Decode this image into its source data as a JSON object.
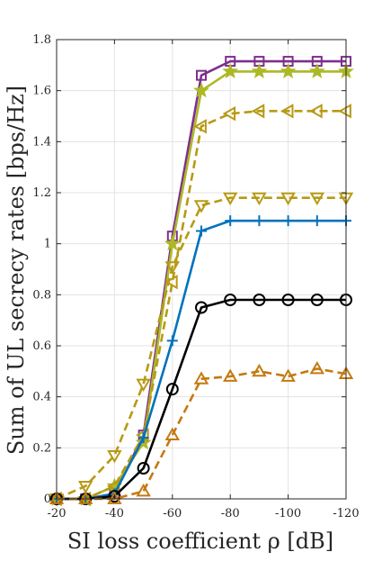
{
  "chart_data": {
    "type": "line",
    "xlabel": "SI loss coefficient ρ [dB]",
    "ylabel": "Sum of UL secrecy rates [bps/Hz]",
    "x": [
      -20,
      -30,
      -40,
      -50,
      -60,
      -70,
      -80,
      -90,
      -100,
      -110,
      -120
    ],
    "x_ticks": [
      -20,
      -40,
      -60,
      -80,
      -100,
      -120
    ],
    "x_tick_labels": [
      "-20",
      "-40",
      "-60",
      "-80",
      "-100",
      "-120"
    ],
    "x_reversed": true,
    "xlim": [
      -20,
      -120
    ],
    "ylim": [
      0,
      1.8
    ],
    "y_ticks": [
      0,
      0.2,
      0.4,
      0.6,
      0.8,
      1,
      1.2,
      1.4,
      1.6,
      1.8
    ],
    "y_tick_labels": [
      "0",
      "0.2",
      "0.4",
      "0.6",
      "0.8",
      "1",
      "1.2",
      "1.4",
      "1.6",
      "1.8"
    ],
    "grid": true,
    "series": [
      {
        "marker": "square",
        "line": "solid",
        "color": "#7E2F8E",
        "values": [
          0.0,
          0.0,
          0.02,
          0.25,
          1.03,
          1.66,
          1.715,
          1.715,
          1.715,
          1.715,
          1.715
        ]
      },
      {
        "marker": "star",
        "line": "solid",
        "color": "#ADB827",
        "values": [
          0.0,
          0.0,
          0.05,
          0.22,
          1.0,
          1.6,
          1.675,
          1.675,
          1.675,
          1.675,
          1.675
        ]
      },
      {
        "marker": "triangle-left",
        "line": "dashed",
        "color": "#B79A14",
        "values": [
          0.0,
          0.0,
          0.05,
          0.25,
          0.85,
          1.46,
          1.51,
          1.52,
          1.52,
          1.52,
          1.52
        ]
      },
      {
        "marker": "triangle-down",
        "line": "dashed",
        "color": "#B79A14",
        "values": [
          0.0,
          0.05,
          0.17,
          0.45,
          0.91,
          1.15,
          1.18,
          1.18,
          1.18,
          1.18,
          1.18
        ]
      },
      {
        "marker": "plus",
        "line": "solid",
        "color": "#0072BD",
        "values": [
          0.0,
          0.0,
          0.02,
          0.24,
          0.62,
          1.05,
          1.09,
          1.09,
          1.09,
          1.09,
          1.09
        ]
      },
      {
        "marker": "circle",
        "line": "solid",
        "color": "#000000",
        "values": [
          0.0,
          0.0,
          0.01,
          0.12,
          0.43,
          0.75,
          0.78,
          0.78,
          0.78,
          0.78,
          0.78
        ]
      },
      {
        "marker": "triangle-up",
        "line": "dashed",
        "color": "#C47A10",
        "values": [
          0.0,
          0.0,
          0.0,
          0.03,
          0.25,
          0.47,
          0.48,
          0.5,
          0.48,
          0.51,
          0.49
        ]
      }
    ]
  }
}
